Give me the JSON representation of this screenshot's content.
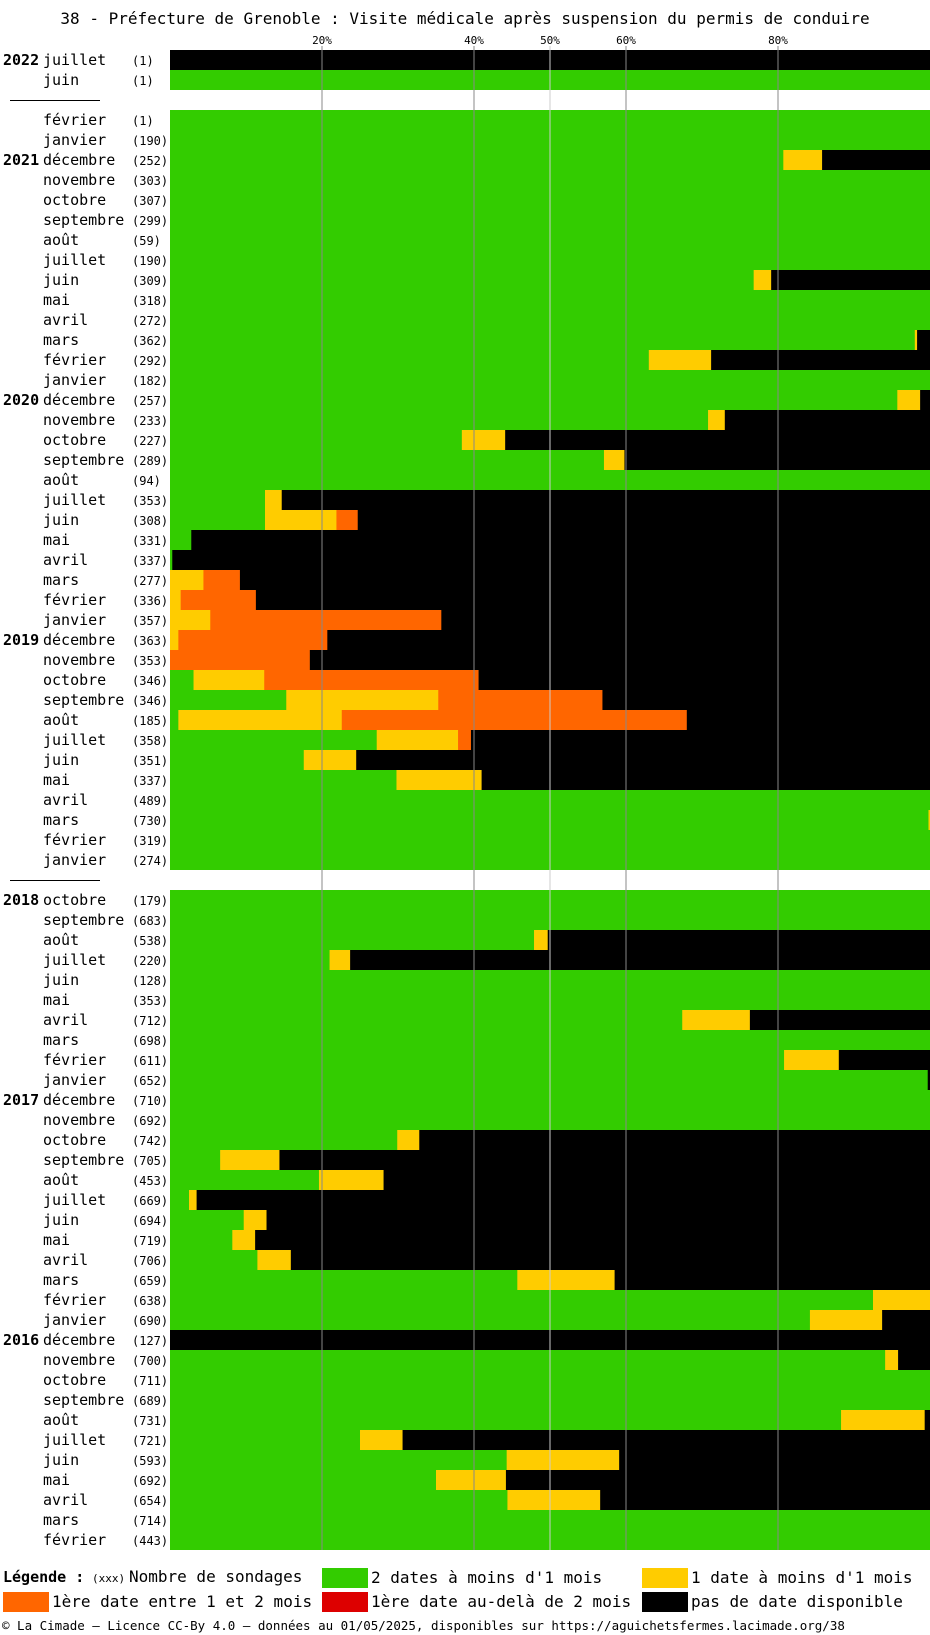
{
  "chart_data": {
    "type": "bar",
    "title": "38 - Préfecture de Grenoble : Visite médicale après suspension du permis de conduire",
    "x_ticks": [
      {
        "value": 20,
        "label": "20%"
      },
      {
        "value": 40,
        "label": "40%"
      },
      {
        "value": 50,
        "label": "50%"
      },
      {
        "value": 60,
        "label": "60%"
      },
      {
        "value": 80,
        "label": "80%"
      }
    ],
    "xlim": [
      0,
      100
    ],
    "series_names": [
      "2 dates à moins d'1 mois",
      "1 date à moins d'1 mois",
      "1ère date entre 1 et 2 mois",
      "1ère date au-delà de 2 mois",
      "pas de date disponible"
    ],
    "colors": {
      "g": "#33cc00",
      "y": "#ffcc00",
      "o": "#ff6600",
      "r": "#dd0000",
      "k": "#000000"
    },
    "rows": [
      {
        "year": "2022",
        "month": "juillet",
        "count": "(1)",
        "segs": [
          [
            "k",
            100
          ]
        ]
      },
      {
        "year": "",
        "month": "juin",
        "count": "(1)",
        "segs": [
          [
            "g",
            100
          ]
        ]
      },
      {
        "gap": true
      },
      {
        "year": "",
        "month": "février",
        "count": "(1)",
        "segs": [
          [
            "g",
            100
          ]
        ]
      },
      {
        "year": "",
        "month": "janvier",
        "count": "(190)",
        "segs": [
          [
            "g",
            100
          ]
        ]
      },
      {
        "year": "2021",
        "month": "décembre",
        "count": "(252)",
        "segs": [
          [
            "g",
            80.7
          ],
          [
            "y",
            5.1
          ],
          [
            "k",
            14.2
          ]
        ]
      },
      {
        "year": "",
        "month": "novembre",
        "count": "(303)",
        "segs": [
          [
            "g",
            100
          ]
        ]
      },
      {
        "year": "",
        "month": "octobre",
        "count": "(307)",
        "segs": [
          [
            "g",
            100
          ]
        ]
      },
      {
        "year": "",
        "month": "septembre",
        "count": "(299)",
        "segs": [
          [
            "g",
            100
          ]
        ]
      },
      {
        "year": "",
        "month": "août",
        "count": "(59)",
        "segs": [
          [
            "g",
            100
          ]
        ]
      },
      {
        "year": "",
        "month": "juillet",
        "count": "(190)",
        "segs": [
          [
            "g",
            100
          ]
        ]
      },
      {
        "year": "",
        "month": "juin",
        "count": "(309)",
        "segs": [
          [
            "g",
            76.8
          ],
          [
            "y",
            2.3
          ],
          [
            "k",
            20.9
          ]
        ]
      },
      {
        "year": "",
        "month": "mai",
        "count": "(318)",
        "segs": [
          [
            "g",
            100
          ]
        ]
      },
      {
        "year": "",
        "month": "avril",
        "count": "(272)",
        "segs": [
          [
            "g",
            100
          ]
        ]
      },
      {
        "year": "",
        "month": "mars",
        "count": "(362)",
        "segs": [
          [
            "g",
            98.0
          ],
          [
            "y",
            0.3
          ],
          [
            "k",
            1.7
          ]
        ]
      },
      {
        "year": "",
        "month": "février",
        "count": "(292)",
        "segs": [
          [
            "g",
            63.0
          ],
          [
            "y",
            8.2
          ],
          [
            "k",
            28.8
          ]
        ]
      },
      {
        "year": "",
        "month": "janvier",
        "count": "(182)",
        "segs": [
          [
            "g",
            100
          ]
        ]
      },
      {
        "year": "2020",
        "month": "décembre",
        "count": "(257)",
        "segs": [
          [
            "g",
            95.7
          ],
          [
            "y",
            3.0
          ],
          [
            "k",
            1.3
          ]
        ]
      },
      {
        "year": "",
        "month": "novembre",
        "count": "(233)",
        "segs": [
          [
            "g",
            70.8
          ],
          [
            "y",
            2.2
          ],
          [
            "k",
            27.0
          ]
        ]
      },
      {
        "year": "",
        "month": "octobre",
        "count": "(227)",
        "segs": [
          [
            "g",
            38.4
          ],
          [
            "y",
            5.7
          ],
          [
            "k",
            55.9
          ]
        ]
      },
      {
        "year": "",
        "month": "septembre",
        "count": "(289)",
        "segs": [
          [
            "g",
            57.1
          ],
          [
            "y",
            2.7
          ],
          [
            "k",
            40.2
          ]
        ]
      },
      {
        "year": "",
        "month": "août",
        "count": "(94)",
        "segs": [
          [
            "g",
            100
          ]
        ]
      },
      {
        "year": "",
        "month": "juillet",
        "count": "(353)",
        "segs": [
          [
            "g",
            12.5
          ],
          [
            "y",
            2.2
          ],
          [
            "k",
            85.3
          ]
        ]
      },
      {
        "year": "",
        "month": "juin",
        "count": "(308)",
        "segs": [
          [
            "g",
            12.5
          ],
          [
            "y",
            9.4
          ],
          [
            "o",
            2.8
          ],
          [
            "k",
            75.3
          ]
        ]
      },
      {
        "year": "",
        "month": "mai",
        "count": "(331)",
        "segs": [
          [
            "g",
            2.8
          ],
          [
            "k",
            97.2
          ]
        ]
      },
      {
        "year": "",
        "month": "avril",
        "count": "(337)",
        "segs": [
          [
            "g",
            0.3
          ],
          [
            "k",
            99.7
          ]
        ]
      },
      {
        "year": "",
        "month": "mars",
        "count": "(277)",
        "segs": [
          [
            "y",
            4.4
          ],
          [
            "o",
            4.8
          ],
          [
            "k",
            90.8
          ]
        ]
      },
      {
        "year": "",
        "month": "février",
        "count": "(336)",
        "segs": [
          [
            "y",
            1.4
          ],
          [
            "o",
            9.9
          ],
          [
            "k",
            88.7
          ]
        ]
      },
      {
        "year": "",
        "month": "janvier",
        "count": "(357)",
        "segs": [
          [
            "y",
            5.3
          ],
          [
            "o",
            30.4
          ],
          [
            "k",
            64.3
          ]
        ]
      },
      {
        "year": "2019",
        "month": "décembre",
        "count": "(363)",
        "segs": [
          [
            "y",
            1.1
          ],
          [
            "o",
            19.6
          ],
          [
            "k",
            79.3
          ]
        ]
      },
      {
        "year": "",
        "month": "novembre",
        "count": "(353)",
        "segs": [
          [
            "o",
            18.4
          ],
          [
            "k",
            81.6
          ]
        ]
      },
      {
        "year": "",
        "month": "octobre",
        "count": "(346)",
        "segs": [
          [
            "g",
            3.1
          ],
          [
            "y",
            9.3
          ],
          [
            "o",
            28.2
          ],
          [
            "k",
            59.4
          ]
        ]
      },
      {
        "year": "",
        "month": "septembre",
        "count": "(346)",
        "segs": [
          [
            "g",
            15.3
          ],
          [
            "y",
            20.0
          ],
          [
            "o",
            21.6
          ],
          [
            "k",
            43.1
          ]
        ]
      },
      {
        "year": "",
        "month": "août",
        "count": "(185)",
        "segs": [
          [
            "g",
            1.1
          ],
          [
            "y",
            21.5
          ],
          [
            "o",
            45.4
          ],
          [
            "k",
            32.0
          ]
        ]
      },
      {
        "year": "",
        "month": "juillet",
        "count": "(358)",
        "segs": [
          [
            "g",
            27.2
          ],
          [
            "y",
            10.7
          ],
          [
            "o",
            1.7
          ],
          [
            "k",
            60.4
          ]
        ]
      },
      {
        "year": "",
        "month": "juin",
        "count": "(351)",
        "segs": [
          [
            "g",
            17.6
          ],
          [
            "y",
            6.9
          ],
          [
            "k",
            75.5
          ]
        ]
      },
      {
        "year": "",
        "month": "mai",
        "count": "(337)",
        "segs": [
          [
            "g",
            29.8
          ],
          [
            "y",
            11.2
          ],
          [
            "k",
            59.0
          ]
        ]
      },
      {
        "year": "",
        "month": "avril",
        "count": "(489)",
        "segs": [
          [
            "g",
            100
          ]
        ]
      },
      {
        "year": "",
        "month": "mars",
        "count": "(730)",
        "segs": [
          [
            "g",
            99.8
          ],
          [
            "y",
            0.2
          ]
        ]
      },
      {
        "year": "",
        "month": "février",
        "count": "(319)",
        "segs": [
          [
            "g",
            100
          ]
        ]
      },
      {
        "year": "",
        "month": "janvier",
        "count": "(274)",
        "segs": [
          [
            "g",
            100
          ]
        ]
      },
      {
        "gap": true
      },
      {
        "year": "2018",
        "month": "octobre",
        "count": "(179)",
        "segs": [
          [
            "g",
            100
          ]
        ]
      },
      {
        "year": "",
        "month": "septembre",
        "count": "(683)",
        "segs": [
          [
            "g",
            100
          ]
        ]
      },
      {
        "year": "",
        "month": "août",
        "count": "(538)",
        "segs": [
          [
            "g",
            47.9
          ],
          [
            "y",
            1.8
          ],
          [
            "k",
            50.3
          ]
        ]
      },
      {
        "year": "",
        "month": "juillet",
        "count": "(220)",
        "segs": [
          [
            "g",
            21.0
          ],
          [
            "y",
            2.7
          ],
          [
            "k",
            76.3
          ]
        ]
      },
      {
        "year": "",
        "month": "juin",
        "count": "(128)",
        "segs": [
          [
            "g",
            100
          ]
        ]
      },
      {
        "year": "",
        "month": "mai",
        "count": "(353)",
        "segs": [
          [
            "g",
            100
          ]
        ]
      },
      {
        "year": "",
        "month": "avril",
        "count": "(712)",
        "segs": [
          [
            "g",
            67.4
          ],
          [
            "y",
            8.9
          ],
          [
            "k",
            23.7
          ]
        ]
      },
      {
        "year": "",
        "month": "mars",
        "count": "(698)",
        "segs": [
          [
            "g",
            100
          ]
        ]
      },
      {
        "year": "",
        "month": "février",
        "count": "(611)",
        "segs": [
          [
            "g",
            80.8
          ],
          [
            "y",
            7.2
          ],
          [
            "k",
            12.0
          ]
        ]
      },
      {
        "year": "",
        "month": "janvier",
        "count": "(652)",
        "segs": [
          [
            "g",
            99.7
          ],
          [
            "k",
            0.3
          ]
        ]
      },
      {
        "year": "2017",
        "month": "décembre",
        "count": "(710)",
        "segs": [
          [
            "g",
            100
          ]
        ]
      },
      {
        "year": "",
        "month": "novembre",
        "count": "(692)",
        "segs": [
          [
            "g",
            100
          ]
        ]
      },
      {
        "year": "",
        "month": "octobre",
        "count": "(742)",
        "segs": [
          [
            "g",
            29.9
          ],
          [
            "y",
            2.9
          ],
          [
            "k",
            67.2
          ]
        ]
      },
      {
        "year": "",
        "month": "septembre",
        "count": "(705)",
        "segs": [
          [
            "g",
            6.6
          ],
          [
            "y",
            7.8
          ],
          [
            "k",
            85.6
          ]
        ]
      },
      {
        "year": "",
        "month": "août",
        "count": "(453)",
        "segs": [
          [
            "g",
            19.6
          ],
          [
            "y",
            8.5
          ],
          [
            "k",
            71.9
          ]
        ]
      },
      {
        "year": "",
        "month": "juillet",
        "count": "(669)",
        "segs": [
          [
            "g",
            2.5
          ],
          [
            "y",
            1.0
          ],
          [
            "k",
            96.5
          ]
        ]
      },
      {
        "year": "",
        "month": "juin",
        "count": "(694)",
        "segs": [
          [
            "g",
            9.7
          ],
          [
            "y",
            3.0
          ],
          [
            "k",
            87.3
          ]
        ]
      },
      {
        "year": "",
        "month": "mai",
        "count": "(719)",
        "segs": [
          [
            "g",
            8.2
          ],
          [
            "y",
            3.0
          ],
          [
            "k",
            88.8
          ]
        ]
      },
      {
        "year": "",
        "month": "avril",
        "count": "(706)",
        "segs": [
          [
            "g",
            11.5
          ],
          [
            "y",
            4.4
          ],
          [
            "k",
            84.1
          ]
        ]
      },
      {
        "year": "",
        "month": "mars",
        "count": "(659)",
        "segs": [
          [
            "g",
            45.7
          ],
          [
            "y",
            12.8
          ],
          [
            "k",
            41.5
          ]
        ]
      },
      {
        "year": "",
        "month": "février",
        "count": "(638)",
        "segs": [
          [
            "g",
            92.5
          ],
          [
            "y",
            7.5
          ]
        ]
      },
      {
        "year": "",
        "month": "janvier",
        "count": "(690)",
        "segs": [
          [
            "g",
            84.2
          ],
          [
            "y",
            9.5
          ],
          [
            "k",
            6.3
          ]
        ]
      },
      {
        "year": "2016",
        "month": "décembre",
        "count": "(127)",
        "segs": [
          [
            "k",
            100
          ]
        ]
      },
      {
        "year": "",
        "month": "novembre",
        "count": "(700)",
        "segs": [
          [
            "g",
            94.1
          ],
          [
            "y",
            1.7
          ],
          [
            "k",
            4.2
          ]
        ]
      },
      {
        "year": "",
        "month": "octobre",
        "count": "(711)",
        "segs": [
          [
            "g",
            100
          ]
        ]
      },
      {
        "year": "",
        "month": "septembre",
        "count": "(689)",
        "segs": [
          [
            "g",
            100
          ]
        ]
      },
      {
        "year": "",
        "month": "août",
        "count": "(731)",
        "segs": [
          [
            "g",
            88.3
          ],
          [
            "y",
            11.0
          ],
          [
            "k",
            0.7
          ]
        ]
      },
      {
        "year": "",
        "month": "juillet",
        "count": "(721)",
        "segs": [
          [
            "g",
            25.0
          ],
          [
            "y",
            5.6
          ],
          [
            "k",
            69.4
          ]
        ]
      },
      {
        "year": "",
        "month": "juin",
        "count": "(593)",
        "segs": [
          [
            "g",
            44.3
          ],
          [
            "y",
            14.8
          ],
          [
            "k",
            40.9
          ]
        ]
      },
      {
        "year": "",
        "month": "mai",
        "count": "(692)",
        "segs": [
          [
            "g",
            35.0
          ],
          [
            "y",
            9.2
          ],
          [
            "k",
            55.8
          ]
        ]
      },
      {
        "year": "",
        "month": "avril",
        "count": "(654)",
        "segs": [
          [
            "g",
            44.4
          ],
          [
            "y",
            12.2
          ],
          [
            "k",
            43.4
          ]
        ]
      },
      {
        "year": "",
        "month": "mars",
        "count": "(714)",
        "segs": [
          [
            "g",
            100
          ]
        ]
      },
      {
        "year": "",
        "month": "février",
        "count": "(443)",
        "segs": [
          [
            "g",
            100
          ]
        ]
      }
    ]
  },
  "legend": {
    "title": "Légende :",
    "count_hint": "(xxx)",
    "count_label": "Nombre de sondages",
    "items": [
      {
        "key": "g",
        "label": "2 dates à moins d'1 mois"
      },
      {
        "key": "y",
        "label": "1 date à moins d'1 mois"
      },
      {
        "key": "o",
        "label": "1ère date entre 1 et 2 mois"
      },
      {
        "key": "r",
        "label": "1ère date au-delà de 2 mois"
      },
      {
        "key": "k",
        "label": "pas de date disponible"
      }
    ]
  },
  "footer": "© La Cimade – Licence CC-By 4.0 – données au 01/05/2025, disponibles sur https://aguichetsfermes.lacimade.org/38"
}
